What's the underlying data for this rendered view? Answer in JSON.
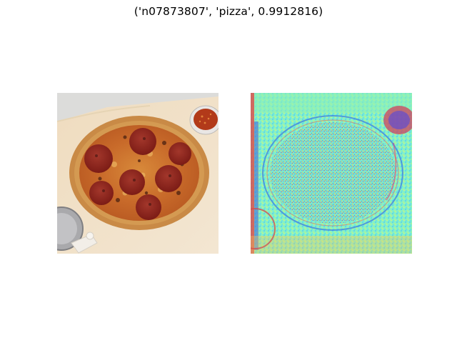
{
  "figure": {
    "title": "('n07873807', 'pizza', 0.9912816)"
  },
  "panels": [
    {
      "kind": "photo",
      "subject": "pepperoni pizza on parchment paper with pizza cutter and chili flakes bowl"
    },
    {
      "kind": "saliency-heatmap",
      "colormap": "jet-like"
    }
  ],
  "colors": {
    "background": "#ffffff",
    "heatmap_base": "#7ef0c0",
    "crust": "#c8843e",
    "sauce": "#b8431e",
    "pepperoni": "#8f1f1a",
    "parchment": "#efe1c8"
  }
}
